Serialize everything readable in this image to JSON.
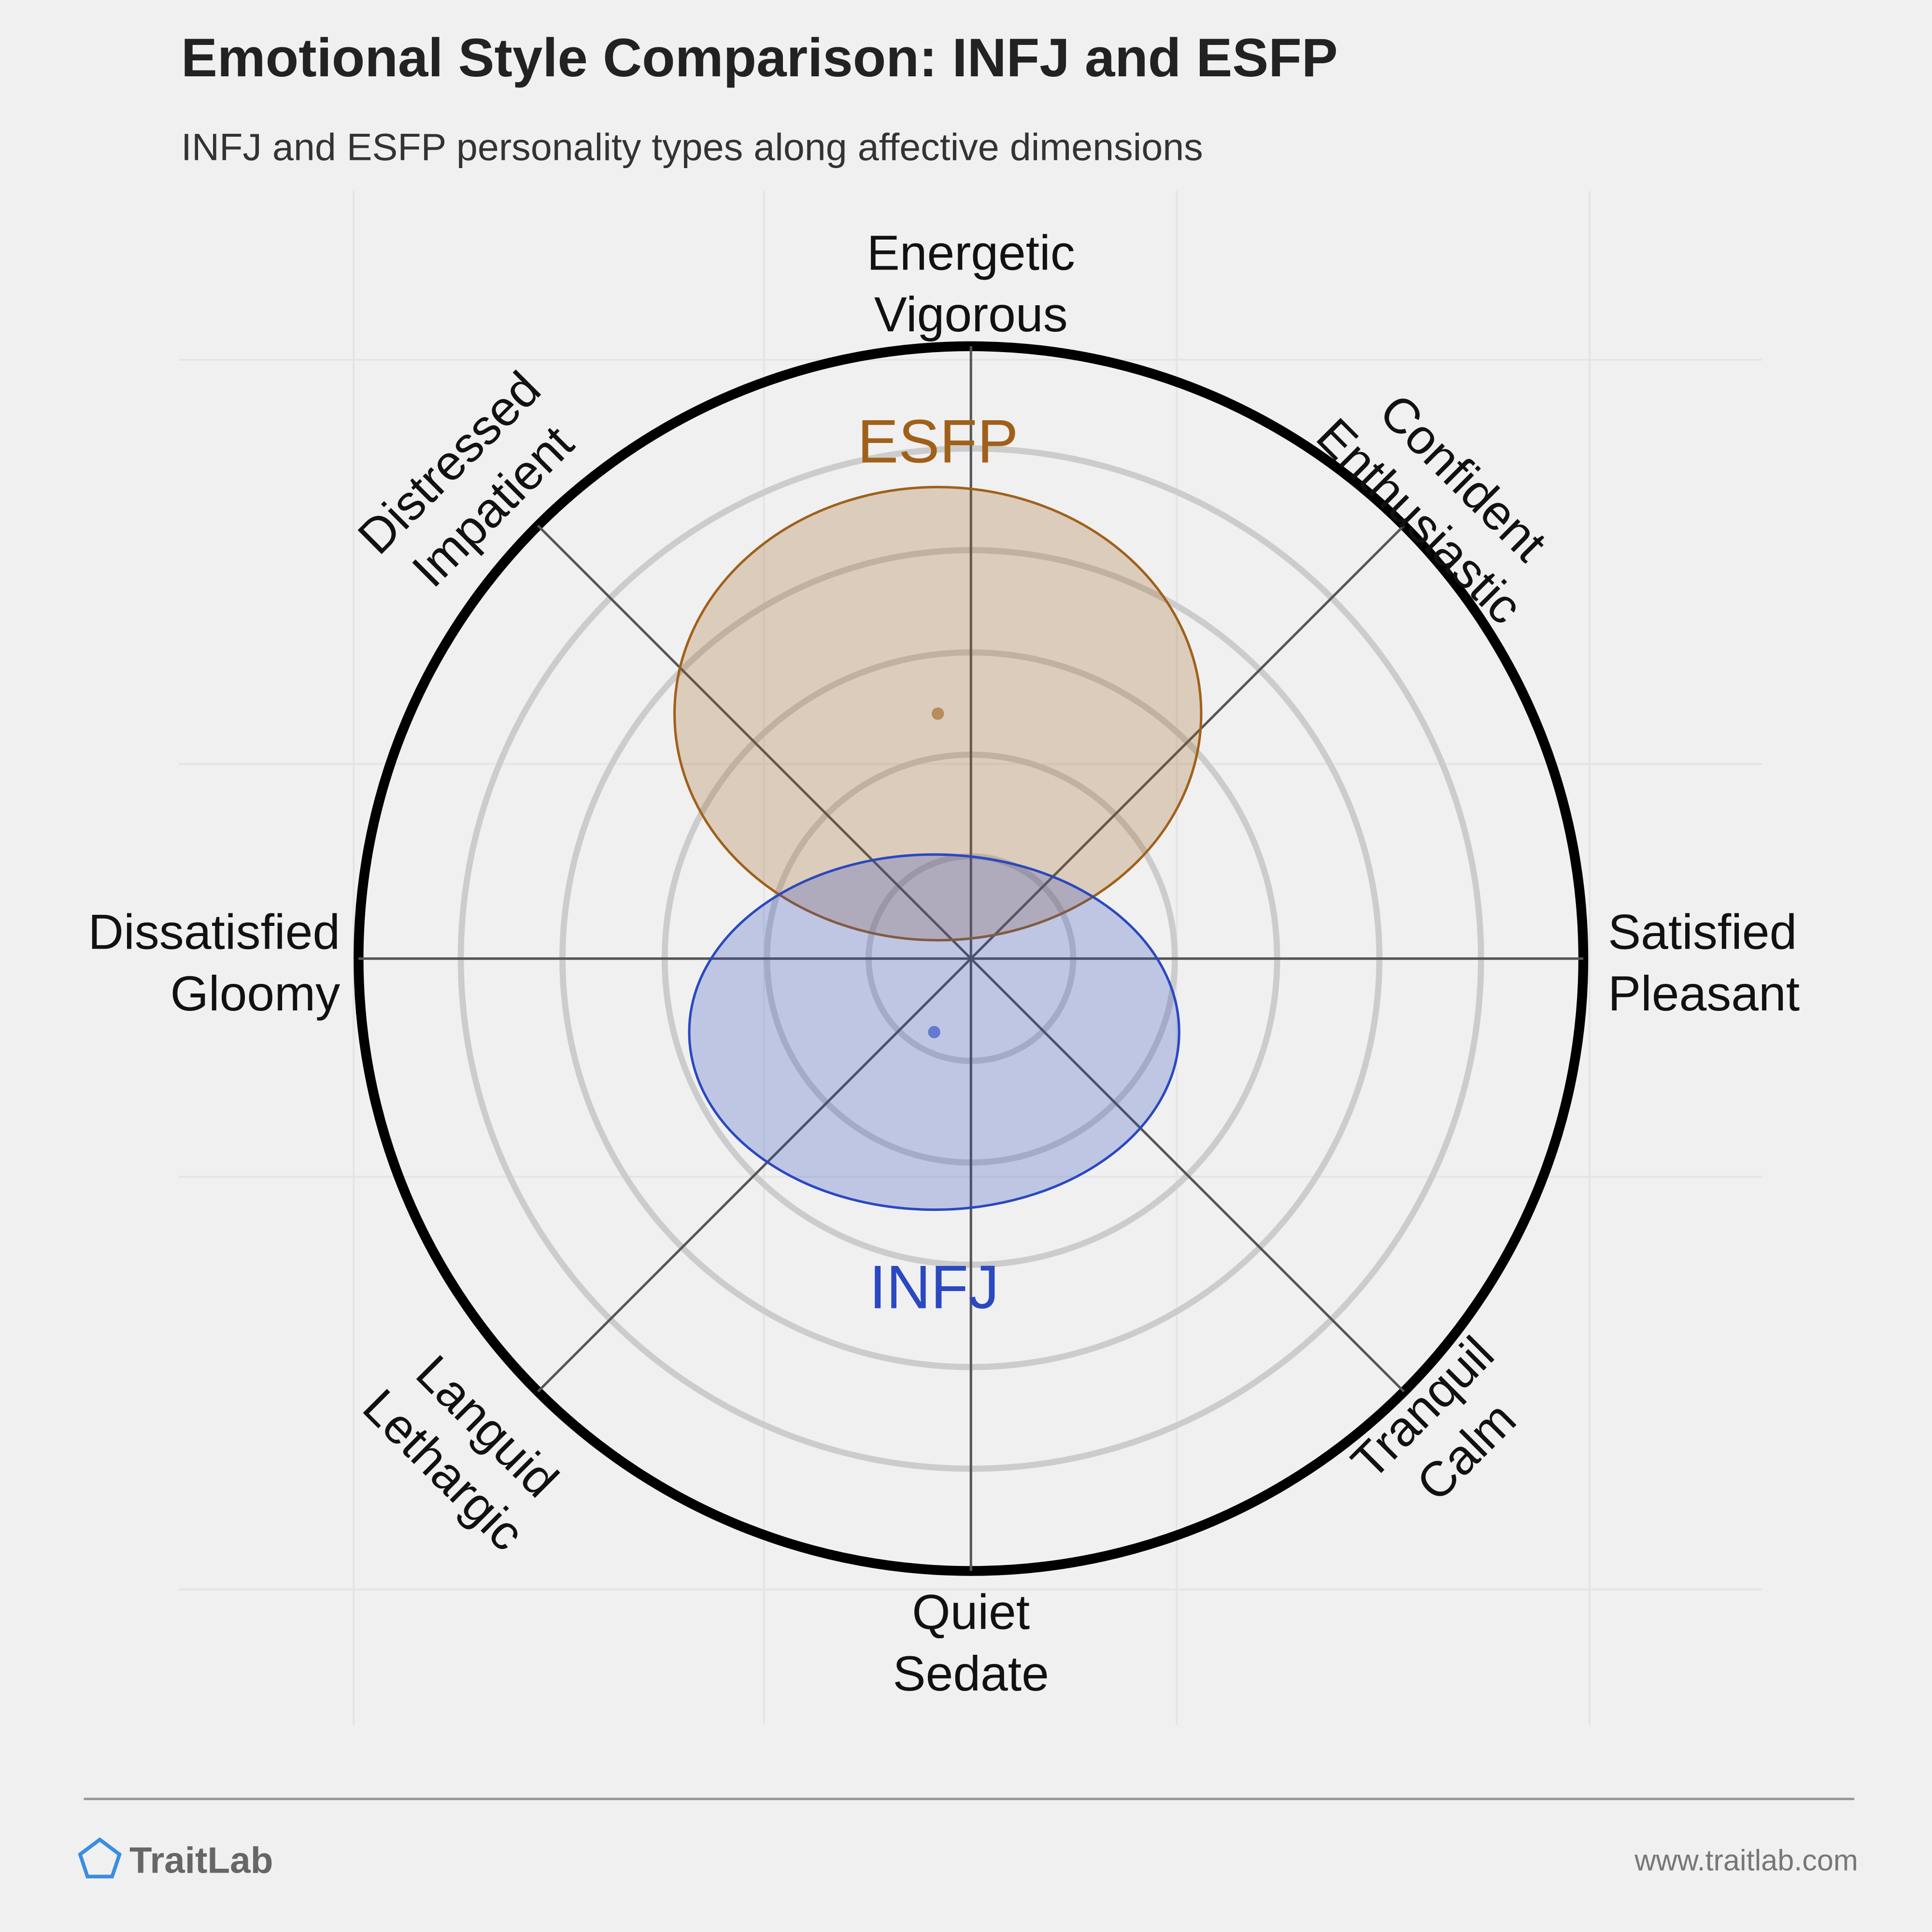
{
  "chart_data": {
    "type": "circumplex",
    "title": "Emotional Style Comparison: INFJ and ESFP",
    "subtitle": "INFJ and ESFP personality types along affective dimensions",
    "axis_labels": [
      [
        "Energetic",
        "Vigorous"
      ],
      [
        "Confident",
        "Enthusiastic"
      ],
      [
        "Satisfied",
        "Pleasant"
      ],
      [
        "Tranquil",
        "Calm"
      ],
      [
        "Quiet",
        "Sedate"
      ],
      [
        "Languid",
        "Lethargic"
      ],
      [
        "Dissatisfied",
        "Gloomy"
      ],
      [
        "Distressed",
        "Impatient"
      ]
    ],
    "xlim": [
      -1,
      1
    ],
    "ylim": [
      -1,
      1
    ],
    "rticks": [
      0.167,
      0.333,
      0.5,
      0.667,
      0.833,
      1
    ],
    "series": [
      {
        "name": "ESFP",
        "color": "#a0601a",
        "x": -0.054,
        "y": 0.4,
        "rx": 0.43,
        "ry": 0.37
      },
      {
        "name": "INFJ",
        "color": "#2a48c0",
        "x": -0.06,
        "y": -0.12,
        "rx": 0.4,
        "ry": 0.29
      }
    ]
  },
  "footer": {
    "brand": "TraitLab",
    "url": "www.traitlab.com"
  }
}
